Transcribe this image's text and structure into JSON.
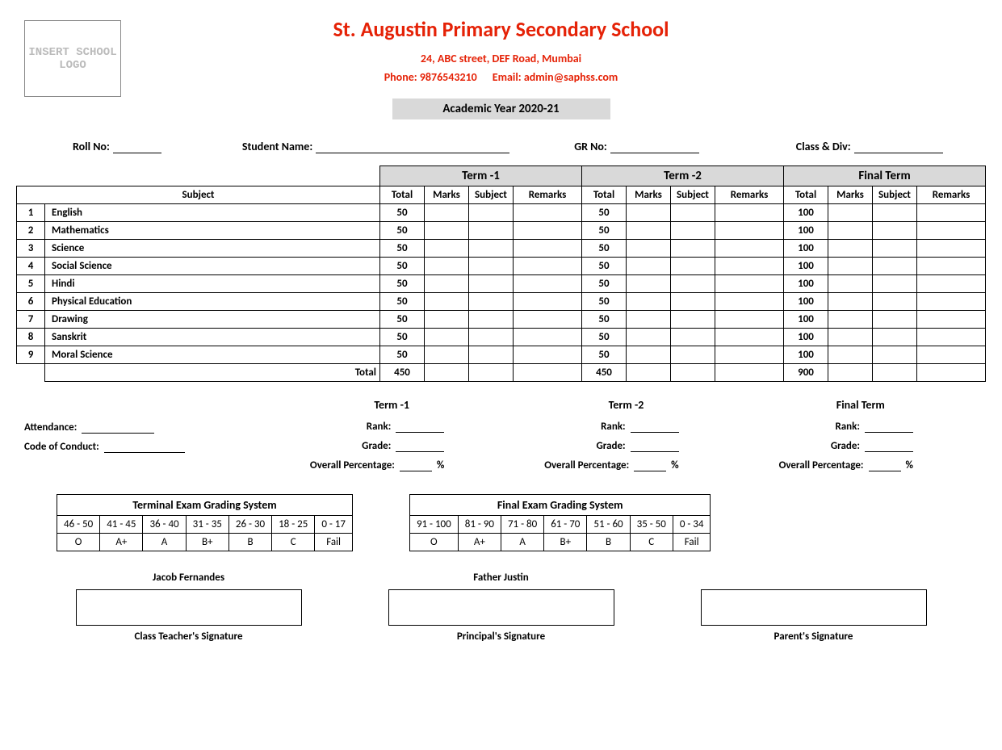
{
  "logo_placeholder": "INSERT SCHOOL LOGO",
  "school_name": "St. Augustin Primary Secondary School",
  "address": "24, ABC street, DEF Road, Mumbai",
  "phone_label": "Phone:",
  "phone": "9876543210",
  "email_label": "Email:",
  "email": "admin@saphss.com",
  "year_label": "Academic Year 2020-21",
  "fields": {
    "roll": "Roll No:",
    "student": "Student Name:",
    "gr": "GR No:",
    "class": "Class & Div:"
  },
  "table": {
    "subject_header": "Subject",
    "terms": [
      "Term -1",
      "Term -2",
      "Final Term"
    ],
    "sub_headers": [
      "Total",
      "Marks",
      "Subject",
      "Remarks"
    ],
    "rows": [
      {
        "n": "1",
        "name": "English",
        "t1": "50",
        "t2": "50",
        "ft": "100"
      },
      {
        "n": "2",
        "name": "Mathematics",
        "t1": "50",
        "t2": "50",
        "ft": "100"
      },
      {
        "n": "3",
        "name": "Science",
        "t1": "50",
        "t2": "50",
        "ft": "100"
      },
      {
        "n": "4",
        "name": "Social Science",
        "t1": "50",
        "t2": "50",
        "ft": "100"
      },
      {
        "n": "5",
        "name": "Hindi",
        "t1": "50",
        "t2": "50",
        "ft": "100"
      },
      {
        "n": "6",
        "name": "Physical Education",
        "t1": "50",
        "t2": "50",
        "ft": "100"
      },
      {
        "n": "7",
        "name": "Drawing",
        "t1": "50",
        "t2": "50",
        "ft": "100"
      },
      {
        "n": "8",
        "name": "Sanskrit",
        "t1": "50",
        "t2": "50",
        "ft": "100"
      },
      {
        "n": "9",
        "name": "Moral Science",
        "t1": "50",
        "t2": "50",
        "ft": "100"
      }
    ],
    "total_label": "Total",
    "totals": {
      "t1": "450",
      "t2": "450",
      "ft": "900"
    }
  },
  "summary": {
    "attendance": "Attendance:",
    "conduct": "Code of Conduct:",
    "rank": "Rank:",
    "grade": "Grade:",
    "pct": "Overall Percentage:",
    "pct_unit": "%"
  },
  "grading": {
    "terminal": {
      "title": "Terminal Exam Grading System",
      "ranges": [
        "46 - 50",
        "41 - 45",
        "36 - 40",
        "31 - 35",
        "26 - 30",
        "18 - 25",
        "0 - 17"
      ],
      "grades": [
        "O",
        "A+",
        "A",
        "B+",
        "B",
        "C",
        "Fail"
      ]
    },
    "final": {
      "title": "Final Exam Grading System",
      "ranges": [
        "91 - 100",
        "81 - 90",
        "71 - 80",
        "61 - 70",
        "51 - 60",
        "35 - 50",
        "0 - 34"
      ],
      "grades": [
        "O",
        "A+",
        "A",
        "B+",
        "B",
        "C",
        "Fail"
      ]
    }
  },
  "signatures": {
    "teacher_name": "Jacob Fernandes",
    "teacher_label": "Class Teacher's Signature",
    "principal_name": "Father Justin",
    "principal_label": "Principal's Signature",
    "parent_name": "",
    "parent_label": "Parent's Signature"
  }
}
